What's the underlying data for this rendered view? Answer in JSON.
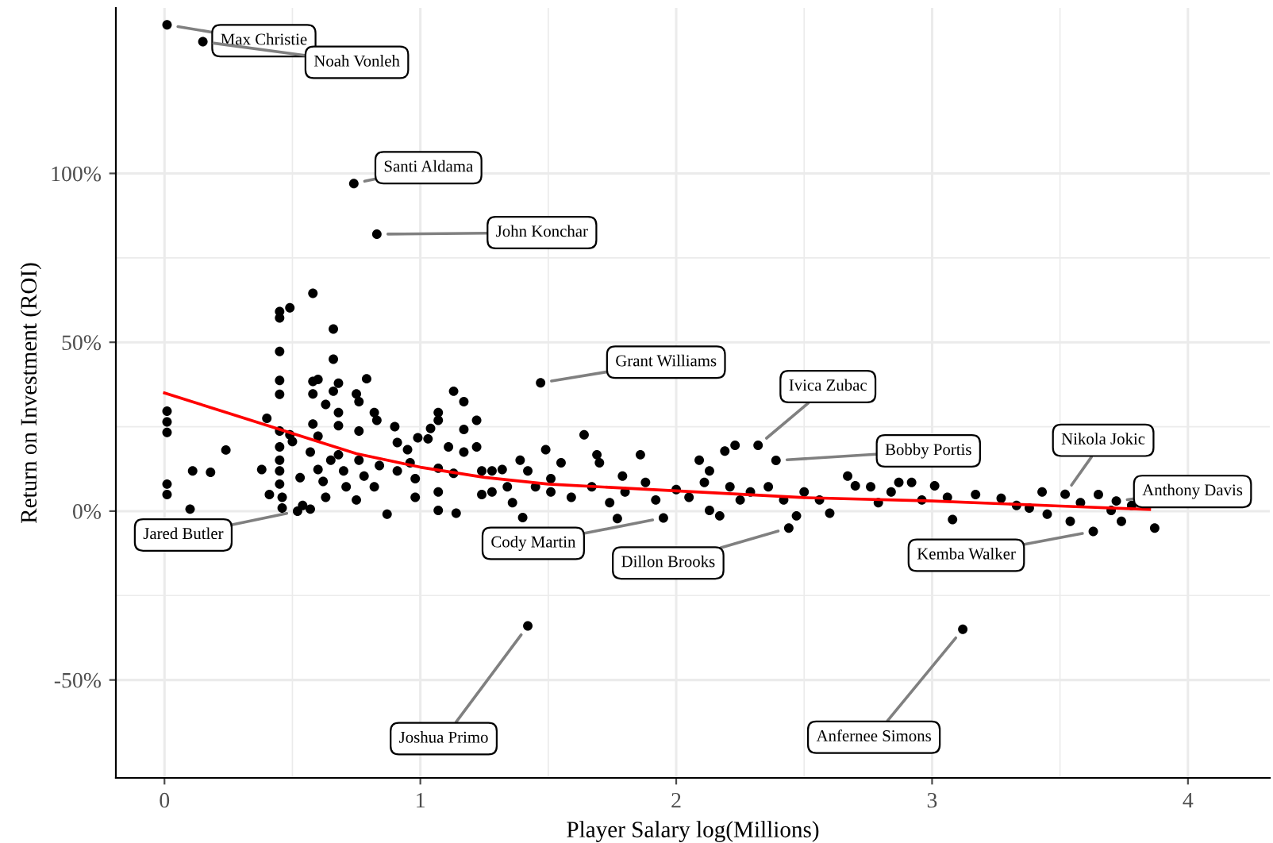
{
  "chart_data": {
    "type": "scatter",
    "xlabel": "Player Salary log(Millions)",
    "ylabel": "Return on Investment (ROI)",
    "xlim": [
      -0.19,
      4.32
    ],
    "ylim": [
      -79,
      149
    ],
    "xticks": [
      0,
      1,
      2,
      3,
      4
    ],
    "yticks": [
      {
        "value": -50,
        "label": "-50%"
      },
      {
        "value": 0,
        "label": "0%"
      },
      {
        "value": 50,
        "label": "50%"
      },
      {
        "value": 100,
        "label": "100%"
      }
    ],
    "grid": true,
    "marker": "circle",
    "series": [
      {
        "color": "#000000",
        "x": [
          0.01,
          0.15,
          0.74,
          0.83,
          1.47,
          2.32,
          2.39,
          3.52,
          3.72,
          3.63,
          2.44,
          1.95,
          0.52,
          1.42,
          3.12,
          0.01,
          0.01,
          0.01,
          0.01,
          0.01,
          0.1,
          0.11,
          0.18,
          0.24,
          0.38,
          0.4,
          0.41,
          0.45,
          0.45,
          0.49,
          0.58,
          0.45,
          0.45,
          0.45,
          0.45,
          0.45,
          0.45,
          0.45,
          0.45,
          0.46,
          0.46,
          0.53,
          0.54,
          0.57,
          0.49,
          0.5,
          0.58,
          0.6,
          0.58,
          0.63,
          0.66,
          0.66,
          0.68,
          0.66,
          0.68,
          0.68,
          0.58,
          0.6,
          0.57,
          0.6,
          0.62,
          0.63,
          0.65,
          0.68,
          0.7,
          0.71,
          0.75,
          0.76,
          0.76,
          0.79,
          0.76,
          0.75,
          0.78,
          0.82,
          0.83,
          0.82,
          0.84,
          0.87,
          0.9,
          0.91,
          0.91,
          0.95,
          0.96,
          0.98,
          0.98,
          0.99,
          1.03,
          1.04,
          1.07,
          1.07,
          1.07,
          1.07,
          1.07,
          1.11,
          1.13,
          1.17,
          1.17,
          1.17,
          1.13,
          1.14,
          1.22,
          1.22,
          1.24,
          1.24,
          1.28,
          1.28,
          1.32,
          1.34,
          1.36,
          1.39,
          1.4,
          1.42,
          1.45,
          1.49,
          1.51,
          1.64,
          1.69,
          1.7,
          1.55,
          1.86,
          1.79,
          1.77,
          2.09,
          2.13,
          2.19,
          2.23,
          1.51,
          1.59,
          1.67,
          1.74,
          1.8,
          1.88,
          1.92,
          2.0,
          2.05,
          2.11,
          2.13,
          2.17,
          2.21,
          2.25,
          2.29,
          2.36,
          2.42,
          2.47,
          2.5,
          2.56,
          2.6,
          2.67,
          2.7,
          2.76,
          2.79,
          2.84,
          2.87,
          2.92,
          2.96,
          3.01,
          3.06,
          3.08,
          3.17,
          3.27,
          3.33,
          3.38,
          3.43,
          3.45,
          3.54,
          3.58,
          3.65,
          3.7,
          3.74,
          3.78,
          3.87
        ],
        "values": [
          144,
          139,
          97,
          82,
          38,
          19.5,
          15,
          5,
          3,
          -6,
          -5,
          -2,
          0,
          -34,
          -35,
          29.6,
          26.4,
          23.3,
          8.0,
          4.9,
          0.6,
          11.9,
          11.5,
          18.1,
          12.3,
          27.5,
          4.9,
          59.1,
          57.2,
          60.2,
          64.5,
          47.3,
          38.7,
          34.6,
          23.7,
          19.0,
          15.1,
          11.9,
          8.0,
          4.1,
          0.9,
          9.9,
          1.7,
          0.6,
          22.6,
          20.6,
          38.4,
          39.0,
          34.7,
          31.6,
          53.9,
          45.0,
          37.9,
          35.5,
          29.2,
          25.3,
          25.8,
          22.2,
          17.5,
          12.3,
          8.8,
          4.1,
          15.1,
          16.7,
          11.9,
          7.2,
          34.7,
          32.4,
          23.7,
          39.2,
          15.1,
          3.3,
          10.4,
          29.2,
          26.9,
          7.2,
          13.5,
          -0.9,
          25.0,
          20.3,
          11.9,
          18.2,
          14.3,
          9.6,
          4.1,
          21.7,
          21.4,
          24.5,
          29.2,
          26.9,
          12.7,
          5.7,
          0.2,
          19.0,
          35.5,
          32.4,
          24.2,
          17.5,
          11.2,
          -0.6,
          26.9,
          19.0,
          11.9,
          4.9,
          11.9,
          5.7,
          12.3,
          7.2,
          2.5,
          15.1,
          -1.9,
          11.9,
          7.2,
          18.2,
          9.6,
          22.6,
          16.7,
          14.3,
          14.3,
          16.7,
          10.4,
          -2.2,
          15.1,
          11.9,
          17.8,
          19.5,
          5.7,
          4.1,
          7.2,
          2.5,
          5.7,
          8.5,
          3.3,
          6.4,
          4.1,
          8.5,
          0.2,
          -1.4,
          7.2,
          3.3,
          5.7,
          7.2,
          3.3,
          -1.4,
          5.7,
          3.3,
          -0.6,
          10.4,
          7.5,
          7.2,
          2.5,
          5.7,
          8.5,
          8.5,
          3.3,
          7.5,
          4.1,
          -2.5,
          4.9,
          3.8,
          1.7,
          0.9,
          5.7,
          -0.9,
          -3.0,
          2.5,
          4.9,
          0.2,
          -3.0,
          1.7,
          -5.0
        ]
      },
      {
        "type": "line",
        "color": "#ff0000",
        "marker": "none",
        "x": [
          0.0,
          0.25,
          0.5,
          0.75,
          1.0,
          1.25,
          1.5,
          2.0,
          2.5,
          3.0,
          3.5,
          3.85
        ],
        "values": [
          35,
          29,
          23,
          17,
          13,
          10,
          8,
          6,
          4,
          3,
          1.5,
          0.5
        ]
      }
    ],
    "annotations": [
      {
        "text": "Max Christie",
        "x": 0.01,
        "y": 144
      },
      {
        "text": "Noah Vonleh",
        "x": 0.15,
        "y": 139
      },
      {
        "text": "Santi Aldama",
        "x": 0.74,
        "y": 97
      },
      {
        "text": "John Konchar",
        "x": 0.83,
        "y": 82
      },
      {
        "text": "Grant Williams",
        "x": 1.47,
        "y": 38
      },
      {
        "text": "Ivica Zubac",
        "x": 2.32,
        "y": 19.5
      },
      {
        "text": "Bobby Portis",
        "x": 2.39,
        "y": 15
      },
      {
        "text": "Nikola Jokic",
        "x": 3.52,
        "y": 5
      },
      {
        "text": "Anthony Davis",
        "x": 3.72,
        "y": 3
      },
      {
        "text": "Kemba Walker",
        "x": 3.63,
        "y": -6
      },
      {
        "text": "Dillon Brooks",
        "x": 2.44,
        "y": -5
      },
      {
        "text": "Cody Martin",
        "x": 1.95,
        "y": -2
      },
      {
        "text": "Jared Butler",
        "x": 0.52,
        "y": 0
      },
      {
        "text": "Joshua Primo",
        "x": 1.42,
        "y": -34
      },
      {
        "text": "Anfernee Simons",
        "x": 3.12,
        "y": -35
      }
    ]
  }
}
